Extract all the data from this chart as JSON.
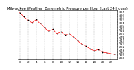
{
  "title": "Milwaukee Weather  Barometric Pressure per Hour (Last 24 Hours)",
  "hours": [
    0,
    1,
    2,
    3,
    4,
    5,
    6,
    7,
    8,
    9,
    10,
    11,
    12,
    13,
    14,
    15,
    16,
    17,
    18,
    19,
    20,
    21,
    22,
    23
  ],
  "pressure": [
    30.45,
    30.3,
    30.18,
    30.08,
    30.2,
    30.05,
    29.9,
    29.78,
    29.85,
    29.68,
    29.75,
    29.62,
    29.68,
    29.55,
    29.42,
    29.3,
    29.22,
    29.12,
    29.05,
    29.1,
    29.0,
    28.98,
    28.95,
    28.92
  ],
  "ylim": [
    28.75,
    30.55
  ],
  "xlim": [
    -0.5,
    23.5
  ],
  "bg_color": "#ffffff",
  "line_color": "#ff0000",
  "dot_color": "#000000",
  "grid_color": "#999999",
  "title_color": "#000000",
  "title_fontsize": 3.8,
  "tick_fontsize": 3.0,
  "line_width": 0.5,
  "dot_size": 1.5,
  "ytick_values": [
    28.8,
    28.9,
    29.0,
    29.1,
    29.2,
    29.3,
    29.4,
    29.5,
    29.6,
    29.7,
    29.8,
    29.9,
    30.0,
    30.1,
    30.2,
    30.3,
    30.4,
    30.5
  ],
  "xtick_positions": [
    0,
    2,
    4,
    6,
    8,
    10,
    12,
    14,
    16,
    18,
    20,
    22
  ],
  "xtick_labels": [
    "0",
    "2",
    "4",
    "6",
    "8",
    "10",
    "12",
    "14",
    "16",
    "18",
    "20",
    "22"
  ],
  "vgrid_positions": [
    0,
    2,
    4,
    6,
    8,
    10,
    12,
    14,
    16,
    18,
    20,
    22
  ]
}
